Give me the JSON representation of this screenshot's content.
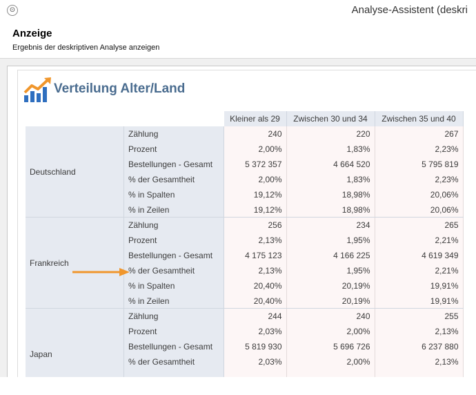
{
  "window": {
    "title": "Analyse-Assistent (deskri",
    "app_icon_glyph": "⊙"
  },
  "header": {
    "heading": "Anzeige",
    "subheading": "Ergebnis der deskriptiven Analyse anzeigen"
  },
  "report": {
    "title": "Verteilung Alter/Land",
    "logo_icon": "bar-chart-trend-icon",
    "columns": [
      "Kleiner als 29",
      "Zwischen 30 und 34",
      "Zwischen 35 und 40"
    ],
    "groups": [
      {
        "country": "Deutschland",
        "rows": [
          {
            "metric": "Zählung",
            "values": [
              "240",
              "220",
              "267"
            ]
          },
          {
            "metric": "Prozent",
            "values": [
              "2,00%",
              "1,83%",
              "2,23%"
            ]
          },
          {
            "metric": "Bestellungen - Gesamt",
            "values": [
              "5 372 357",
              "4 664 520",
              "5 795 819"
            ]
          },
          {
            "metric": "% der Gesamtheit",
            "values": [
              "2,00%",
              "1,83%",
              "2,23%"
            ]
          },
          {
            "metric": "% in Spalten",
            "values": [
              "19,12%",
              "18,98%",
              "20,06%"
            ]
          },
          {
            "metric": "% in Zeilen",
            "values": [
              "19,12%",
              "18,98%",
              "20,06%"
            ]
          }
        ]
      },
      {
        "country": "Frankreich",
        "rows": [
          {
            "metric": "Zählung",
            "values": [
              "256",
              "234",
              "265"
            ]
          },
          {
            "metric": "Prozent",
            "values": [
              "2,13%",
              "1,95%",
              "2,21%"
            ]
          },
          {
            "metric": "Bestellungen - Gesamt",
            "values": [
              "4 175 123",
              "4 166 225",
              "4 619 349"
            ]
          },
          {
            "metric": "% der Gesamtheit",
            "values": [
              "2,13%",
              "1,95%",
              "2,21%"
            ]
          },
          {
            "metric": "% in Spalten",
            "values": [
              "20,40%",
              "20,19%",
              "19,91%"
            ]
          },
          {
            "metric": "% in Zeilen",
            "values": [
              "20,40%",
              "20,19%",
              "19,91%"
            ]
          }
        ]
      },
      {
        "country": "Japan",
        "rows": [
          {
            "metric": "Zählung",
            "values": [
              "244",
              "240",
              "255"
            ]
          },
          {
            "metric": "Prozent",
            "values": [
              "2,03%",
              "2,00%",
              "2,13%"
            ]
          },
          {
            "metric": "Bestellungen - Gesamt",
            "values": [
              "5 819 930",
              "5 696 726",
              "6 237 880"
            ]
          },
          {
            "metric": "% der Gesamtheit",
            "values": [
              "2,03%",
              "2,00%",
              "2,13%"
            ]
          }
        ]
      }
    ]
  },
  "annotation": {
    "arrow_color": "#f0962c"
  },
  "colors": {
    "title_blue": "#4a6c8f",
    "header_bg": "#e6eaf1",
    "value_bg": "#fdf6f6"
  }
}
